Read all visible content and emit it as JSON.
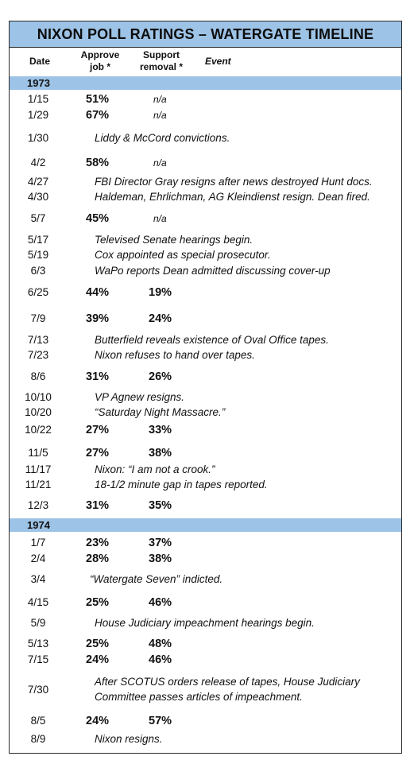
{
  "title": "NIXON POLL RATINGS – WATERGATE TIMELINE",
  "headers": {
    "date": "Date",
    "approve_1": "Approve",
    "approve_2": "job *",
    "support_1": "Support",
    "support_2": "removal *",
    "event": "Event"
  },
  "years": {
    "y1973": "1973",
    "y1974": "1974"
  },
  "rows": [
    {
      "date": "1/15",
      "approve": "51%",
      "support": "n/a"
    },
    {
      "date": "1/29",
      "approve": "67%",
      "support": "n/a"
    },
    {
      "date": "1/30",
      "event": "Liddy & McCord convictions."
    },
    {
      "date": "4/2",
      "approve": "58%",
      "support": "n/a"
    },
    {
      "date": "4/27",
      "event": "FBI Director Gray resigns after news destroyed Hunt docs."
    },
    {
      "date": "4/30",
      "event": "Haldeman, Ehrlichman, AG Kleindienst resign. Dean fired."
    },
    {
      "date": "5/7",
      "approve": "45%",
      "support": "n/a"
    },
    {
      "date": "5/17",
      "event": "Televised Senate hearings begin."
    },
    {
      "date": "5/19",
      "event": "Cox appointed as special prosecutor."
    },
    {
      "date": "6/3",
      "event": "WaPo reports Dean admitted discussing cover-up"
    },
    {
      "date": "6/25",
      "approve": "44%",
      "support": "19%"
    },
    {
      "date": "7/9",
      "approve": "39%",
      "support": "24%"
    },
    {
      "date": "7/13",
      "event": "Butterfield reveals existence of Oval Office tapes."
    },
    {
      "date": "7/23",
      "event": "Nixon refuses to hand over tapes."
    },
    {
      "date": "8/6",
      "approve": "31%",
      "support": "26%"
    },
    {
      "date": "10/10",
      "event": "VP Agnew resigns."
    },
    {
      "date": "10/20",
      "event": "“Saturday Night Massacre.”"
    },
    {
      "date": "10/22",
      "approve": "27%",
      "support": "33%"
    },
    {
      "date": "11/5",
      "approve": "27%",
      "support": "38%"
    },
    {
      "date": "11/17",
      "event": "Nixon: “I am not a crook.”"
    },
    {
      "date": "11/21",
      "event": "18-1/2 minute gap in tapes reported."
    },
    {
      "date": "12/3",
      "approve": "31%",
      "support": "35%"
    },
    {
      "date": "1/7",
      "approve": "23%",
      "support": "37%"
    },
    {
      "date": "2/4",
      "approve": "28%",
      "support": "38%"
    },
    {
      "date": "3/4",
      "event": "“Watergate Seven” indicted."
    },
    {
      "date": "4/15",
      "approve": "25%",
      "support": "46%"
    },
    {
      "date": "5/9",
      "event": "House Judiciary impeachment hearings begin."
    },
    {
      "date": "5/13",
      "approve": "25%",
      "support": "48%"
    },
    {
      "date": "7/15",
      "approve": "24%",
      "support": "46%"
    },
    {
      "date": "7/30",
      "event": "After SCOTUS orders release of tapes, House Judiciary",
      "event2": "Committee passes articles of impeachment."
    },
    {
      "date": "8/5",
      "approve": "24%",
      "support": "57%"
    },
    {
      "date": "8/9",
      "event": "Nixon resigns."
    }
  ],
  "colors": {
    "header_fill": "#9dc3e6",
    "border": "#2b2b2b"
  }
}
